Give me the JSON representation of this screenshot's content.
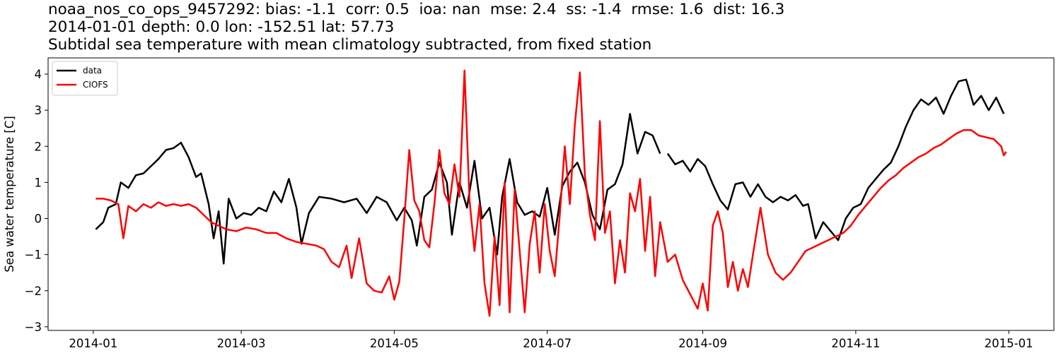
{
  "title": {
    "line1": "noaa_nos_co_ops_9457292: bias: -1.1  corr: 0.5  ioa: nan  mse: 2.4  ss: -1.4  rmse: 1.6  dist: 16.3",
    "line2": "2014-01-01 depth: 0.0 lon: -152.51 lat: 57.73",
    "line3": "Subtidal sea temperature with mean climatology subtracted, from fixed station"
  },
  "chart_data": {
    "type": "line",
    "ylabel": "Sea water temperature [C]",
    "xlabel": "",
    "xlim": [
      "2013-12-14",
      "2015-01-19"
    ],
    "ylim": [
      -3.1,
      4.45
    ],
    "x_ticks": [
      "2014-01",
      "2014-03",
      "2014-05",
      "2014-07",
      "2014-09",
      "2014-11",
      "2015-01"
    ],
    "y_ticks": [
      -3,
      -2,
      -1,
      0,
      1,
      2,
      3,
      4
    ],
    "grid": false,
    "legend": "top-left",
    "series": [
      {
        "name": "data",
        "color": "#000000",
        "points": [
          [
            "2014-01-02",
            -0.3
          ],
          [
            "2014-01-05",
            -0.1
          ],
          [
            "2014-01-07",
            0.3
          ],
          [
            "2014-01-10",
            0.4
          ],
          [
            "2014-01-12",
            1.0
          ],
          [
            "2014-01-15",
            0.85
          ],
          [
            "2014-01-18",
            1.2
          ],
          [
            "2014-01-21",
            1.25
          ],
          [
            "2014-01-24",
            1.45
          ],
          [
            "2014-01-27",
            1.65
          ],
          [
            "2014-01-30",
            1.9
          ],
          [
            "2014-02-02",
            1.95
          ],
          [
            "2014-02-05",
            2.1
          ],
          [
            "2014-02-08",
            1.7
          ],
          [
            "2014-02-11",
            1.15
          ],
          [
            "2014-02-13",
            1.25
          ],
          [
            "2014-02-16",
            0.4
          ],
          [
            "2014-02-18",
            -0.55
          ],
          [
            "2014-02-20",
            0.2
          ],
          [
            "2014-02-22",
            -1.25
          ],
          [
            "2014-02-24",
            0.55
          ],
          [
            "2014-02-27",
            0.0
          ],
          [
            "2014-03-02",
            0.15
          ],
          [
            "2014-03-05",
            0.1
          ],
          [
            "2014-03-08",
            0.3
          ],
          [
            "2014-03-11",
            0.2
          ],
          [
            "2014-03-14",
            0.75
          ],
          [
            "2014-03-17",
            0.45
          ],
          [
            "2014-03-20",
            1.1
          ],
          [
            "2014-03-23",
            0.3
          ],
          [
            "2014-03-25",
            -0.7
          ],
          [
            "2014-03-28",
            0.15
          ],
          [
            "2014-04-01",
            0.6
          ],
          [
            "2014-04-06",
            0.55
          ],
          [
            "2014-04-11",
            0.45
          ],
          [
            "2014-04-16",
            0.55
          ],
          [
            "2014-04-20",
            0.15
          ],
          [
            "2014-04-24",
            0.6
          ],
          [
            "2014-04-28",
            0.45
          ],
          [
            "2014-05-02",
            -0.05
          ],
          [
            "2014-05-05",
            0.3
          ],
          [
            "2014-05-08",
            -0.05
          ],
          [
            "2014-05-10",
            -0.75
          ],
          [
            "2014-05-13",
            0.6
          ],
          [
            "2014-05-16",
            0.8
          ],
          [
            "2014-05-19",
            1.55
          ],
          [
            "2014-05-22",
            1.0
          ],
          [
            "2014-05-24",
            -0.45
          ],
          [
            "2014-05-27",
            1.0
          ],
          [
            "2014-05-30",
            0.3
          ],
          [
            "2014-06-02",
            1.6
          ],
          [
            "2014-06-05",
            0.0
          ],
          [
            "2014-06-08",
            0.3
          ],
          [
            "2014-06-11",
            -1.0
          ],
          [
            "2014-06-13",
            0.6
          ],
          [
            "2014-06-16",
            1.65
          ],
          [
            "2014-06-19",
            0.45
          ],
          [
            "2014-06-22",
            0.1
          ],
          [
            "2014-06-25",
            0.2
          ],
          [
            "2014-06-28",
            0.05
          ],
          [
            "2014-07-01",
            0.85
          ],
          [
            "2014-07-04",
            -0.45
          ],
          [
            "2014-07-07",
            0.9
          ],
          [
            "2014-07-10",
            1.3
          ],
          [
            "2014-07-13",
            1.55
          ],
          [
            "2014-07-16",
            1.0
          ],
          [
            "2014-07-19",
            0.1
          ],
          [
            "2014-07-22",
            -0.3
          ],
          [
            "2014-07-25",
            0.8
          ],
          [
            "2014-07-28",
            0.95
          ],
          [
            "2014-07-31",
            1.5
          ],
          [
            "2014-08-03",
            2.9
          ],
          [
            "2014-08-06",
            1.8
          ],
          [
            "2014-08-09",
            2.4
          ],
          [
            "2014-08-12",
            2.3
          ],
          [
            "2014-08-15",
            1.8
          ],
          null,
          [
            "2014-08-18",
            1.8
          ],
          [
            "2014-08-21",
            1.5
          ],
          [
            "2014-08-24",
            1.6
          ],
          [
            "2014-08-27",
            1.3
          ],
          [
            "2014-08-30",
            1.65
          ],
          [
            "2014-09-02",
            1.45
          ],
          [
            "2014-09-05",
            0.95
          ],
          [
            "2014-09-08",
            0.5
          ],
          [
            "2014-09-11",
            0.25
          ],
          [
            "2014-09-14",
            0.95
          ],
          [
            "2014-09-17",
            1.0
          ],
          [
            "2014-09-20",
            0.6
          ],
          [
            "2014-09-23",
            0.95
          ],
          [
            "2014-09-26",
            0.6
          ],
          [
            "2014-09-29",
            0.45
          ],
          [
            "2014-10-02",
            0.6
          ],
          [
            "2014-10-05",
            0.5
          ],
          [
            "2014-10-08",
            0.65
          ],
          [
            "2014-10-11",
            0.35
          ],
          [
            "2014-10-13",
            0.4
          ],
          [
            "2014-10-16",
            -0.55
          ],
          [
            "2014-10-19",
            -0.1
          ],
          [
            "2014-10-22",
            -0.35
          ],
          [
            "2014-10-25",
            -0.6
          ],
          [
            "2014-10-28",
            0.0
          ],
          [
            "2014-10-31",
            0.3
          ],
          [
            "2014-11-03",
            0.4
          ],
          [
            "2014-11-06",
            0.85
          ],
          [
            "2014-11-09",
            1.1
          ],
          [
            "2014-11-12",
            1.35
          ],
          [
            "2014-11-15",
            1.55
          ],
          [
            "2014-11-18",
            2.0
          ],
          [
            "2014-11-21",
            2.55
          ],
          [
            "2014-11-24",
            3.0
          ],
          [
            "2014-11-27",
            3.3
          ],
          [
            "2014-11-30",
            3.15
          ],
          [
            "2014-12-03",
            3.35
          ],
          [
            "2014-12-06",
            2.9
          ],
          [
            "2014-12-09",
            3.4
          ],
          [
            "2014-12-12",
            3.8
          ],
          [
            "2014-12-15",
            3.85
          ],
          [
            "2014-12-18",
            3.15
          ],
          [
            "2014-12-21",
            3.4
          ],
          [
            "2014-12-24",
            3.0
          ],
          [
            "2014-12-27",
            3.35
          ],
          [
            "2014-12-30",
            2.9
          ]
        ]
      },
      {
        "name": "CIOFS",
        "color": "#ff0000",
        "points": [
          [
            "2014-01-02",
            0.55
          ],
          [
            "2014-01-05",
            0.55
          ],
          [
            "2014-01-08",
            0.5
          ],
          [
            "2014-01-11",
            0.4
          ],
          [
            "2014-01-13",
            -0.55
          ],
          [
            "2014-01-15",
            0.35
          ],
          [
            "2014-01-18",
            0.2
          ],
          [
            "2014-01-21",
            0.4
          ],
          [
            "2014-01-24",
            0.3
          ],
          [
            "2014-01-27",
            0.45
          ],
          [
            "2014-01-30",
            0.35
          ],
          [
            "2014-02-02",
            0.4
          ],
          [
            "2014-02-05",
            0.35
          ],
          [
            "2014-02-08",
            0.4
          ],
          [
            "2014-02-11",
            0.3
          ],
          [
            "2014-02-14",
            0.1
          ],
          [
            "2014-02-17",
            -0.1
          ],
          [
            "2014-02-20",
            -0.2
          ],
          [
            "2014-02-23",
            -0.3
          ],
          [
            "2014-02-27",
            -0.35
          ],
          [
            "2014-03-03",
            -0.25
          ],
          [
            "2014-03-07",
            -0.3
          ],
          [
            "2014-03-11",
            -0.4
          ],
          [
            "2014-03-15",
            -0.4
          ],
          [
            "2014-03-19",
            -0.55
          ],
          [
            "2014-03-23",
            -0.65
          ],
          [
            "2014-03-27",
            -0.7
          ],
          [
            "2014-03-31",
            -0.75
          ],
          [
            "2014-04-03",
            -0.85
          ],
          [
            "2014-04-06",
            -1.2
          ],
          [
            "2014-04-09",
            -1.35
          ],
          [
            "2014-04-12",
            -0.75
          ],
          [
            "2014-04-14",
            -1.65
          ],
          [
            "2014-04-17",
            -0.55
          ],
          [
            "2014-04-20",
            -1.8
          ],
          [
            "2014-04-23",
            -2.0
          ],
          [
            "2014-04-26",
            -2.05
          ],
          [
            "2014-04-29",
            -1.6
          ],
          [
            "2014-05-01",
            -2.25
          ],
          [
            "2014-05-03",
            -1.75
          ],
          [
            "2014-05-05",
            0.0
          ],
          [
            "2014-05-07",
            1.9
          ],
          [
            "2014-05-09",
            0.5
          ],
          [
            "2014-05-11",
            0.2
          ],
          [
            "2014-05-13",
            -0.6
          ],
          [
            "2014-05-15",
            -0.8
          ],
          [
            "2014-05-17",
            0.4
          ],
          [
            "2014-05-19",
            1.9
          ],
          [
            "2014-05-21",
            0.7
          ],
          [
            "2014-05-23",
            0.4
          ],
          [
            "2014-05-25",
            1.5
          ],
          [
            "2014-05-27",
            0.6
          ],
          [
            "2014-05-29",
            4.1
          ],
          [
            "2014-05-31",
            0.5
          ],
          [
            "2014-06-02",
            -0.9
          ],
          [
            "2014-06-04",
            0.4
          ],
          [
            "2014-06-06",
            -1.8
          ],
          [
            "2014-06-08",
            -2.7
          ],
          [
            "2014-06-10",
            -0.5
          ],
          [
            "2014-06-12",
            -2.4
          ],
          [
            "2014-06-14",
            1.0
          ],
          [
            "2014-06-16",
            -2.6
          ],
          [
            "2014-06-18",
            0.8
          ],
          [
            "2014-06-20",
            -0.9
          ],
          [
            "2014-06-22",
            -2.6
          ],
          [
            "2014-06-24",
            -0.7
          ],
          [
            "2014-06-26",
            0.2
          ],
          [
            "2014-06-28",
            -1.5
          ],
          [
            "2014-06-30",
            0.4
          ],
          [
            "2014-07-02",
            -0.9
          ],
          [
            "2014-07-04",
            -1.6
          ],
          [
            "2014-07-06",
            0.1
          ],
          [
            "2014-07-08",
            2.0
          ],
          [
            "2014-07-10",
            0.4
          ],
          [
            "2014-07-12",
            2.6
          ],
          [
            "2014-07-14",
            4.05
          ],
          [
            "2014-07-16",
            1.2
          ],
          [
            "2014-07-18",
            0.1
          ],
          [
            "2014-07-20",
            -0.6
          ],
          [
            "2014-07-22",
            2.7
          ],
          [
            "2014-07-24",
            -0.4
          ],
          [
            "2014-07-26",
            0.2
          ],
          [
            "2014-07-28",
            -1.8
          ],
          [
            "2014-07-30",
            -0.6
          ],
          [
            "2014-08-01",
            -1.5
          ],
          [
            "2014-08-03",
            0.7
          ],
          [
            "2014-08-05",
            0.2
          ],
          [
            "2014-08-07",
            1.1
          ],
          [
            "2014-08-09",
            -0.9
          ],
          [
            "2014-08-11",
            0.6
          ],
          [
            "2014-08-13",
            -1.6
          ],
          [
            "2014-08-15",
            -0.1
          ],
          [
            "2014-08-18",
            -1.2
          ],
          [
            "2014-08-21",
            -1.0
          ],
          [
            "2014-08-24",
            -1.7
          ],
          [
            "2014-08-27",
            -2.1
          ],
          [
            "2014-08-30",
            -2.5
          ],
          [
            "2014-09-01",
            -1.8
          ],
          [
            "2014-09-03",
            -2.55
          ],
          [
            "2014-09-05",
            -0.2
          ],
          [
            "2014-09-07",
            0.2
          ],
          [
            "2014-09-09",
            -0.4
          ],
          [
            "2014-09-11",
            -1.9
          ],
          [
            "2014-09-13",
            -1.2
          ],
          [
            "2014-09-15",
            -2.0
          ],
          [
            "2014-09-17",
            -1.4
          ],
          [
            "2014-09-19",
            -1.9
          ],
          [
            "2014-09-21",
            -1.0
          ],
          [
            "2014-09-24",
            0.3
          ],
          [
            "2014-09-27",
            -1.0
          ],
          [
            "2014-09-30",
            -1.5
          ],
          [
            "2014-10-03",
            -1.7
          ],
          [
            "2014-10-06",
            -1.5
          ],
          [
            "2014-10-09",
            -1.2
          ],
          [
            "2014-10-12",
            -0.9
          ],
          [
            "2014-10-15",
            -0.8
          ],
          [
            "2014-10-18",
            -0.7
          ],
          [
            "2014-10-21",
            -0.6
          ],
          [
            "2014-10-24",
            -0.5
          ],
          [
            "2014-10-27",
            -0.4
          ],
          [
            "2014-10-30",
            -0.2
          ],
          [
            "2014-11-02",
            0.1
          ],
          [
            "2014-11-05",
            0.35
          ],
          [
            "2014-11-08",
            0.6
          ],
          [
            "2014-11-11",
            0.85
          ],
          [
            "2014-11-14",
            1.05
          ],
          [
            "2014-11-17",
            1.2
          ],
          [
            "2014-11-20",
            1.4
          ],
          [
            "2014-11-23",
            1.55
          ],
          [
            "2014-11-26",
            1.7
          ],
          [
            "2014-11-29",
            1.8
          ],
          [
            "2014-12-02",
            1.95
          ],
          [
            "2014-12-05",
            2.05
          ],
          [
            "2014-12-08",
            2.2
          ],
          [
            "2014-12-11",
            2.35
          ],
          [
            "2014-12-14",
            2.45
          ],
          [
            "2014-12-17",
            2.45
          ],
          [
            "2014-12-20",
            2.3
          ],
          [
            "2014-12-23",
            2.25
          ],
          [
            "2014-12-26",
            2.2
          ],
          [
            "2014-12-29",
            2.0
          ],
          [
            "2014-12-30",
            1.75
          ],
          [
            "2014-12-31",
            1.85
          ]
        ]
      }
    ]
  }
}
